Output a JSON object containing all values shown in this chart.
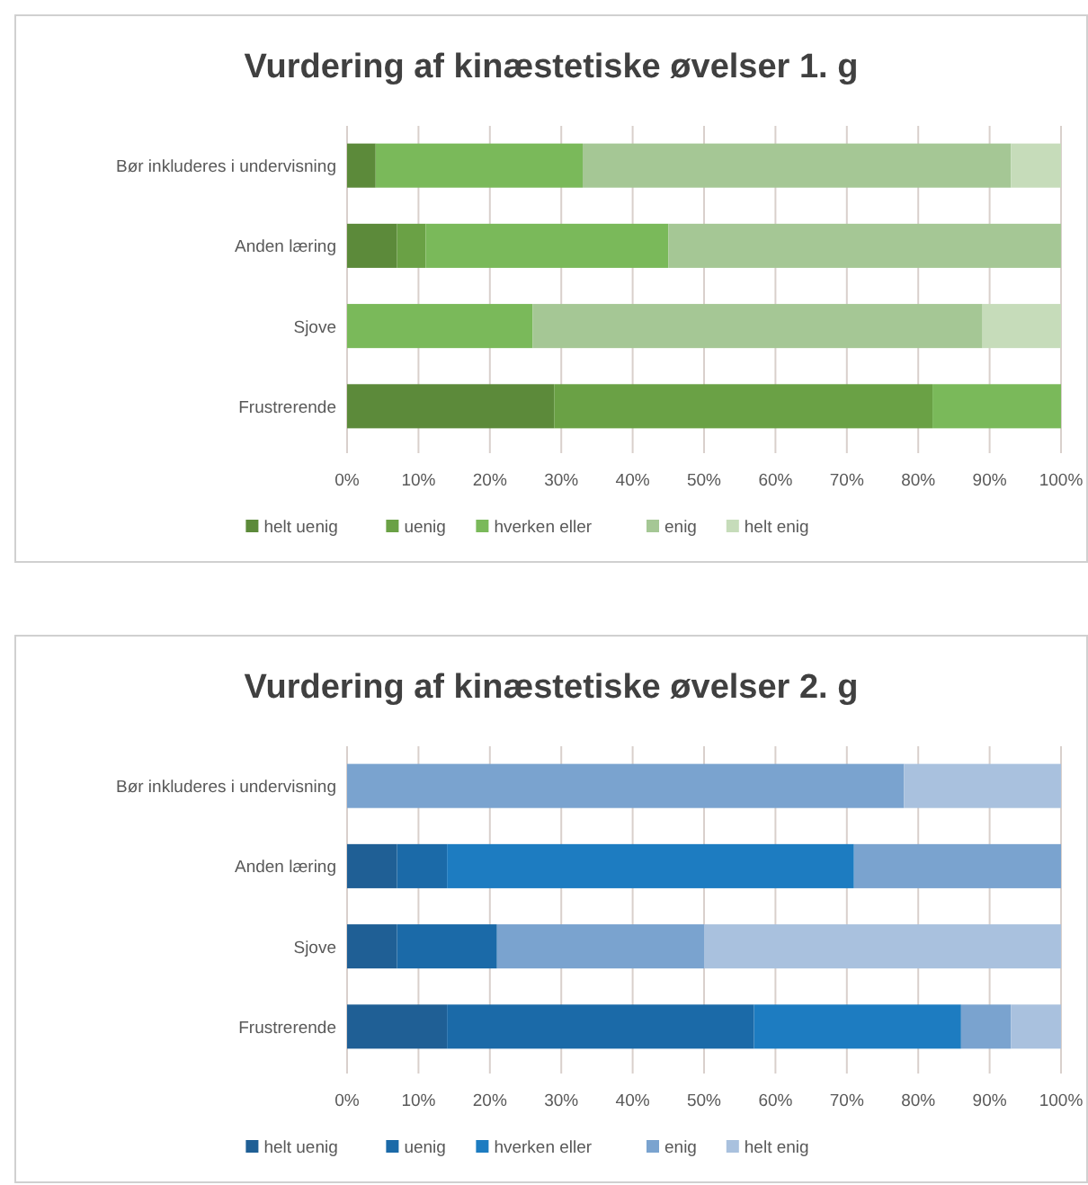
{
  "chart_data": [
    {
      "type": "bar",
      "title": "Vurdering af kinæstetiske øvelser 1. g",
      "orientation": "horizontal",
      "stacked": true,
      "categories": [
        "Bør inkluderes i undervisning",
        "Anden læring",
        "Sjove",
        "Frustrerende"
      ],
      "series": [
        {
          "name": "helt uenig",
          "color": "#5c8a3a",
          "values": [
            4,
            7,
            0,
            29
          ]
        },
        {
          "name": "uenig",
          "color": "#6aa145",
          "values": [
            0,
            4,
            0,
            53
          ]
        },
        {
          "name": "hverken eller",
          "color": "#7ab95a",
          "values": [
            29,
            34,
            26,
            18
          ]
        },
        {
          "name": "enig",
          "color": "#a5c795",
          "values": [
            60,
            55,
            63,
            0
          ]
        },
        {
          "name": "helt enig",
          "color": "#c6dcba",
          "values": [
            7,
            0,
            11,
            0
          ]
        }
      ],
      "xlim": [
        0,
        100
      ],
      "xticks": [
        {
          "value": 0,
          "label": "0%"
        },
        {
          "value": 10,
          "label": "10%"
        },
        {
          "value": 20,
          "label": "20%"
        },
        {
          "value": 30,
          "label": "30%"
        },
        {
          "value": 40,
          "label": "40%"
        },
        {
          "value": 50,
          "label": "50%"
        },
        {
          "value": 60,
          "label": "60%"
        },
        {
          "value": 70,
          "label": "70%"
        },
        {
          "value": 80,
          "label": "80%"
        },
        {
          "value": 90,
          "label": "90%"
        },
        {
          "value": 100,
          "label": "100%"
        }
      ],
      "grid": "x",
      "legend": "bottom"
    },
    {
      "type": "bar",
      "title": "Vurdering af kinæstetiske øvelser 2. g",
      "orientation": "horizontal",
      "stacked": true,
      "categories": [
        "Bør inkluderes i undervisning",
        "Anden læring",
        "Sjove",
        "Frustrerende"
      ],
      "series": [
        {
          "name": "helt uenig",
          "color": "#1f5f95",
          "values": [
            0,
            7,
            7,
            14
          ]
        },
        {
          "name": "uenig",
          "color": "#1b6aa8",
          "values": [
            0,
            7,
            14,
            43
          ]
        },
        {
          "name": "hverken eller",
          "color": "#1d7cc1",
          "values": [
            0,
            57,
            0,
            29
          ]
        },
        {
          "name": "enig",
          "color": "#7aa3cf",
          "values": [
            78,
            29,
            29,
            7
          ]
        },
        {
          "name": "helt enig",
          "color": "#a9c1de",
          "values": [
            22,
            0,
            50,
            7
          ]
        }
      ],
      "xlim": [
        0,
        100
      ],
      "xticks": [
        {
          "value": 0,
          "label": "0%"
        },
        {
          "value": 10,
          "label": "10%"
        },
        {
          "value": 20,
          "label": "20%"
        },
        {
          "value": 30,
          "label": "30%"
        },
        {
          "value": 40,
          "label": "40%"
        },
        {
          "value": 50,
          "label": "50%"
        },
        {
          "value": 60,
          "label": "60%"
        },
        {
          "value": 70,
          "label": "70%"
        },
        {
          "value": 80,
          "label": "80%"
        },
        {
          "value": 90,
          "label": "90%"
        },
        {
          "value": 100,
          "label": "100%"
        }
      ],
      "grid": "x",
      "legend": "bottom"
    }
  ]
}
